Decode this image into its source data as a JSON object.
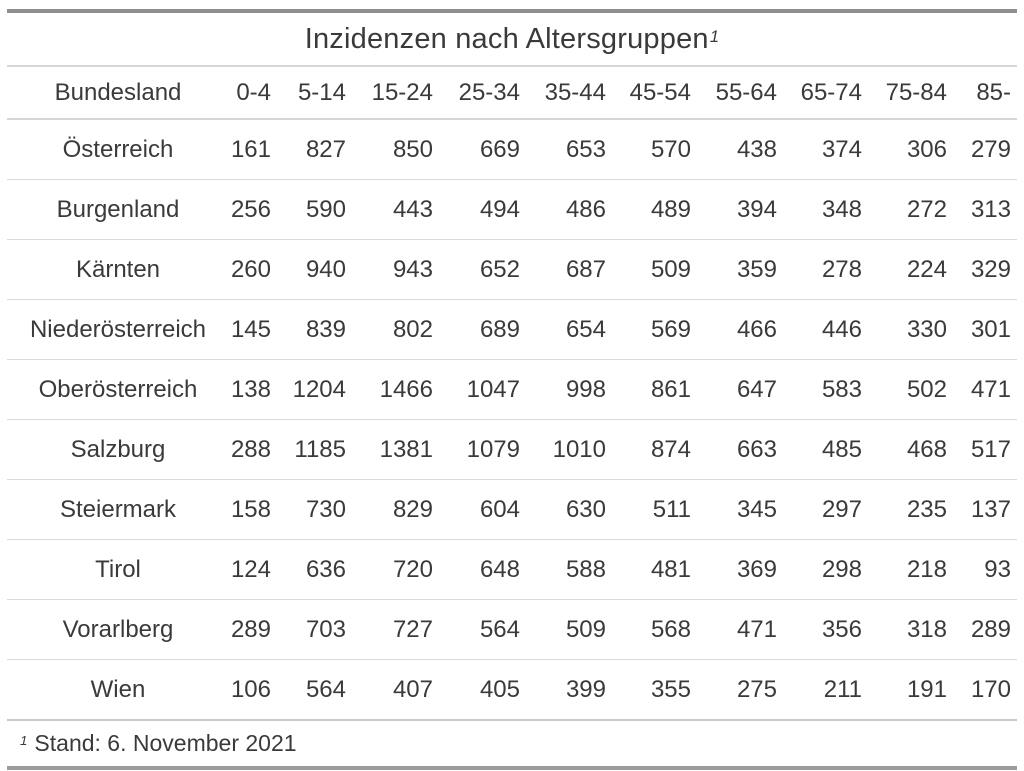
{
  "title": {
    "text": "Inzidenzen nach Altersgruppen",
    "footnote_marker": "1"
  },
  "table": {
    "columns": [
      "Bundesland",
      "0-4",
      "5-14",
      "15-24",
      "25-34",
      "35-44",
      "45-54",
      "55-64",
      "65-74",
      "75-84",
      "85-"
    ],
    "rows": [
      {
        "name": "Österreich",
        "values": [
          "161",
          "827",
          "850",
          "669",
          "653",
          "570",
          "438",
          "374",
          "306",
          "279"
        ]
      },
      {
        "name": "Burgenland",
        "values": [
          "256",
          "590",
          "443",
          "494",
          "486",
          "489",
          "394",
          "348",
          "272",
          "313"
        ]
      },
      {
        "name": "Kärnten",
        "values": [
          "260",
          "940",
          "943",
          "652",
          "687",
          "509",
          "359",
          "278",
          "224",
          "329"
        ]
      },
      {
        "name": "Niederösterreich",
        "values": [
          "145",
          "839",
          "802",
          "689",
          "654",
          "569",
          "466",
          "446",
          "330",
          "301"
        ]
      },
      {
        "name": "Oberösterreich",
        "values": [
          "138",
          "1204",
          "1466",
          "1047",
          "998",
          "861",
          "647",
          "583",
          "502",
          "471"
        ]
      },
      {
        "name": "Salzburg",
        "values": [
          "288",
          "1185",
          "1381",
          "1079",
          "1010",
          "874",
          "663",
          "485",
          "468",
          "517"
        ]
      },
      {
        "name": "Steiermark",
        "values": [
          "158",
          "730",
          "829",
          "604",
          "630",
          "511",
          "345",
          "297",
          "235",
          "137"
        ]
      },
      {
        "name": "Tirol",
        "values": [
          "124",
          "636",
          "720",
          "648",
          "588",
          "481",
          "369",
          "298",
          "218",
          "93"
        ]
      },
      {
        "name": "Vorarlberg",
        "values": [
          "289",
          "703",
          "727",
          "564",
          "509",
          "568",
          "471",
          "356",
          "318",
          "289"
        ]
      },
      {
        "name": "Wien",
        "values": [
          "106",
          "564",
          "407",
          "405",
          "399",
          "355",
          "275",
          "211",
          "191",
          "170"
        ]
      }
    ]
  },
  "footnote": {
    "marker": "1",
    "text": "Stand: 6. November 2021"
  },
  "colors": {
    "background": "#ffffff",
    "text": "#3a3a3a",
    "frame_border": "#8f8f8f",
    "row_separator": "#dadada",
    "section_separator": "#d6d6d6"
  },
  "chart_data": {
    "type": "table",
    "title": "Inzidenzen nach Altersgruppen",
    "footnote": "Stand: 6. November 2021",
    "categories": [
      "0-4",
      "5-14",
      "15-24",
      "25-34",
      "35-44",
      "45-54",
      "55-64",
      "65-74",
      "75-84",
      "85-"
    ],
    "row_header_label": "Bundesland",
    "series": [
      {
        "name": "Österreich",
        "values": [
          161,
          827,
          850,
          669,
          653,
          570,
          438,
          374,
          306,
          279
        ]
      },
      {
        "name": "Burgenland",
        "values": [
          256,
          590,
          443,
          494,
          486,
          489,
          394,
          348,
          272,
          313
        ]
      },
      {
        "name": "Kärnten",
        "values": [
          260,
          940,
          943,
          652,
          687,
          509,
          359,
          278,
          224,
          329
        ]
      },
      {
        "name": "Niederösterreich",
        "values": [
          145,
          839,
          802,
          689,
          654,
          569,
          466,
          446,
          330,
          301
        ]
      },
      {
        "name": "Oberösterreich",
        "values": [
          138,
          1204,
          1466,
          1047,
          998,
          861,
          647,
          583,
          502,
          471
        ]
      },
      {
        "name": "Salzburg",
        "values": [
          288,
          1185,
          1381,
          1079,
          1010,
          874,
          663,
          485,
          468,
          517
        ]
      },
      {
        "name": "Steiermark",
        "values": [
          158,
          730,
          829,
          604,
          630,
          511,
          345,
          297,
          235,
          137
        ]
      },
      {
        "name": "Tirol",
        "values": [
          124,
          636,
          720,
          648,
          588,
          481,
          369,
          298,
          218,
          93
        ]
      },
      {
        "name": "Vorarlberg",
        "values": [
          289,
          703,
          727,
          564,
          509,
          568,
          471,
          356,
          318,
          289
        ]
      },
      {
        "name": "Wien",
        "values": [
          106,
          564,
          407,
          405,
          399,
          355,
          275,
          211,
          191,
          170
        ]
      }
    ]
  }
}
